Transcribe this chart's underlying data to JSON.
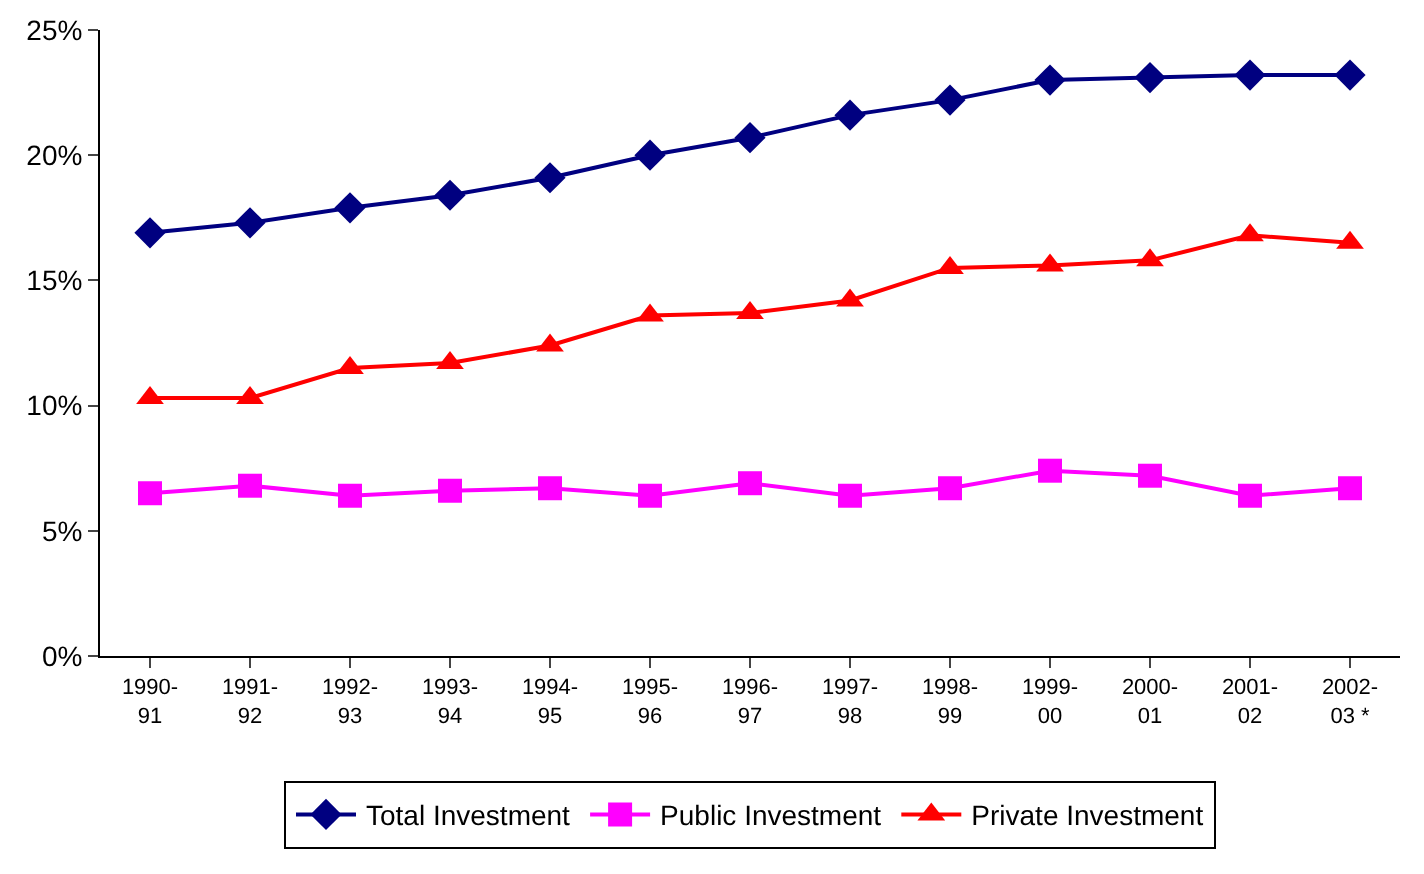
{
  "chart_data": {
    "type": "line",
    "categories": [
      "1990-\n91",
      "1991-\n92",
      "1992-\n93",
      "1993-\n94",
      "1994-\n95",
      "1995-\n96",
      "1996-\n97",
      "1997-\n98",
      "1998-\n99",
      "1999-\n00",
      "2000-\n01",
      "2001-\n02",
      "2002-\n03 *"
    ],
    "series": [
      {
        "name": "Total Investment",
        "color": "#000080",
        "marker": "diamond",
        "values": [
          16.9,
          17.3,
          17.9,
          18.4,
          19.1,
          20.0,
          20.7,
          21.6,
          22.2,
          23.0,
          23.1,
          23.2,
          23.2
        ]
      },
      {
        "name": "Public Investment",
        "color": "#ff00ff",
        "marker": "square",
        "values": [
          6.5,
          6.8,
          6.4,
          6.6,
          6.7,
          6.4,
          6.9,
          6.4,
          6.7,
          7.4,
          7.2,
          6.4,
          6.7
        ]
      },
      {
        "name": "Private Investment",
        "color": "#ff0000",
        "marker": "triangle",
        "values": [
          10.3,
          10.3,
          11.5,
          11.7,
          12.4,
          13.6,
          13.7,
          14.2,
          15.5,
          15.6,
          15.8,
          16.8,
          16.5
        ]
      }
    ],
    "ylim": [
      0,
      25
    ],
    "yticks": [
      {
        "value": 0,
        "label": "0%"
      },
      {
        "value": 5,
        "label": "5%"
      },
      {
        "value": 10,
        "label": "10%"
      },
      {
        "value": 15,
        "label": "15%"
      },
      {
        "value": 20,
        "label": "20%"
      },
      {
        "value": 25,
        "label": "25%"
      }
    ],
    "grid": false,
    "legend": "bottom",
    "line_style": "solid"
  }
}
